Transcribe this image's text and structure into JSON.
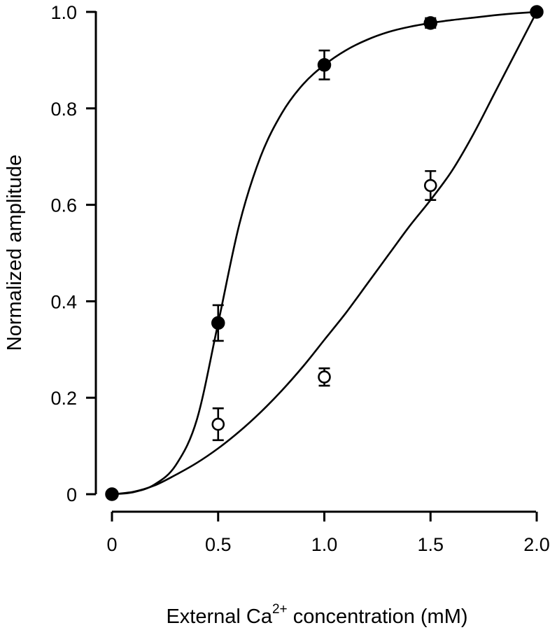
{
  "chart_data": {
    "type": "scatter",
    "title": "",
    "xlabel": {
      "pre": "External Ca",
      "sup": "2+",
      "post": " concentration (mM)"
    },
    "ylabel": "Normalized amplitude",
    "xlim": [
      0,
      2.0
    ],
    "ylim": [
      0,
      1.0
    ],
    "x_ticks": [
      {
        "value": 0,
        "label": "0"
      },
      {
        "value": 0.5,
        "label": "0.5"
      },
      {
        "value": 1.0,
        "label": "1.0"
      },
      {
        "value": 1.5,
        "label": "1.5"
      },
      {
        "value": 2.0,
        "label": "2.0"
      }
    ],
    "y_ticks": [
      {
        "value": 0,
        "label": "0"
      },
      {
        "value": 0.2,
        "label": "0.2"
      },
      {
        "value": 0.4,
        "label": "0.4"
      },
      {
        "value": 0.6,
        "label": "0.6"
      },
      {
        "value": 0.8,
        "label": "0.8"
      },
      {
        "value": 1.0,
        "label": "1.0"
      }
    ],
    "grid": false,
    "legend": "none",
    "series": [
      {
        "marker": "filled-circle",
        "color": "#000000",
        "points": [
          {
            "x": 0,
            "y": 0,
            "err": 0
          },
          {
            "x": 0.5,
            "y": 0.355,
            "err": 0.037
          },
          {
            "x": 1.0,
            "y": 0.89,
            "err": 0.03
          },
          {
            "x": 1.5,
            "y": 0.977,
            "err": 0.01
          },
          {
            "x": 2.0,
            "y": 1.0,
            "err": 0
          }
        ],
        "fit": [
          [
            0,
            0
          ],
          [
            0.1,
            0.004
          ],
          [
            0.2,
            0.02
          ],
          [
            0.3,
            0.06
          ],
          [
            0.4,
            0.155
          ],
          [
            0.5,
            0.355
          ],
          [
            0.6,
            0.56
          ],
          [
            0.7,
            0.7
          ],
          [
            0.8,
            0.79
          ],
          [
            0.9,
            0.85
          ],
          [
            1.0,
            0.89
          ],
          [
            1.1,
            0.92
          ],
          [
            1.2,
            0.942
          ],
          [
            1.3,
            0.958
          ],
          [
            1.4,
            0.969
          ],
          [
            1.5,
            0.977
          ],
          [
            1.6,
            0.983
          ],
          [
            1.7,
            0.988
          ],
          [
            1.8,
            0.993
          ],
          [
            1.9,
            0.997
          ],
          [
            2.0,
            1.0
          ]
        ]
      },
      {
        "marker": "open-circle",
        "color": "#000000",
        "points": [
          {
            "x": 0.5,
            "y": 0.145,
            "err": 0.033
          },
          {
            "x": 1.0,
            "y": 0.243,
            "err": 0.018
          },
          {
            "x": 1.5,
            "y": 0.64,
            "err": 0.03
          }
        ],
        "fit": [
          [
            0,
            0
          ],
          [
            0.1,
            0.005
          ],
          [
            0.2,
            0.018
          ],
          [
            0.3,
            0.04
          ],
          [
            0.4,
            0.065
          ],
          [
            0.5,
            0.095
          ],
          [
            0.6,
            0.13
          ],
          [
            0.7,
            0.17
          ],
          [
            0.8,
            0.215
          ],
          [
            0.9,
            0.265
          ],
          [
            1.0,
            0.32
          ],
          [
            1.1,
            0.375
          ],
          [
            1.2,
            0.435
          ],
          [
            1.3,
            0.495
          ],
          [
            1.4,
            0.555
          ],
          [
            1.5,
            0.61
          ],
          [
            1.6,
            0.67
          ],
          [
            1.7,
            0.745
          ],
          [
            1.8,
            0.83
          ],
          [
            1.9,
            0.915
          ],
          [
            2.0,
            1.0
          ]
        ]
      }
    ]
  }
}
